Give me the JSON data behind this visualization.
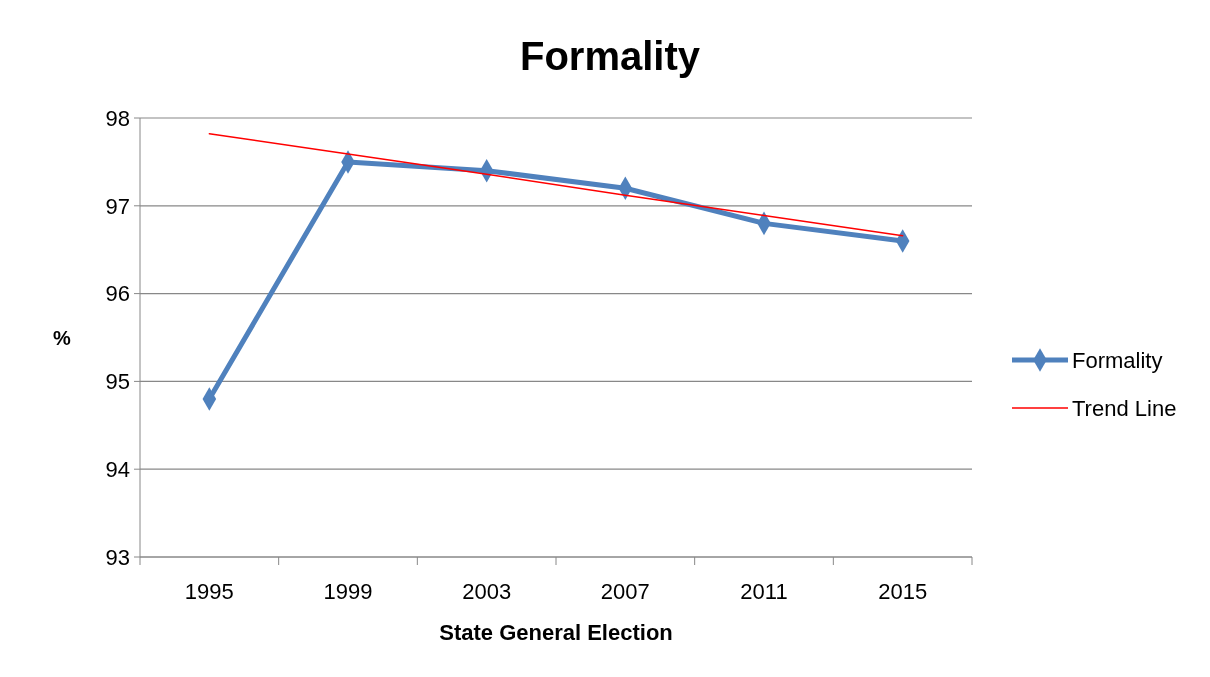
{
  "chart_data": {
    "type": "line",
    "title": "Formality",
    "xlabel": "State General Election",
    "ylabel": "%",
    "categories": [
      "1995",
      "1999",
      "2003",
      "2007",
      "2011",
      "2015"
    ],
    "series": [
      {
        "name": "Formality",
        "color": "#4f81bd",
        "values": [
          94.8,
          97.5,
          97.4,
          97.2,
          96.8,
          96.6
        ],
        "marker": "diamond"
      },
      {
        "name": "Trend Line",
        "color": "#ff0000",
        "type": "line",
        "values": [
          97.82,
          97.59,
          97.36,
          97.12,
          96.89,
          96.66
        ],
        "marker": "none"
      }
    ],
    "ylim": [
      93,
      98
    ],
    "yticks": [
      93,
      94,
      95,
      96,
      97,
      98
    ],
    "grid": "y",
    "legend": "right"
  }
}
